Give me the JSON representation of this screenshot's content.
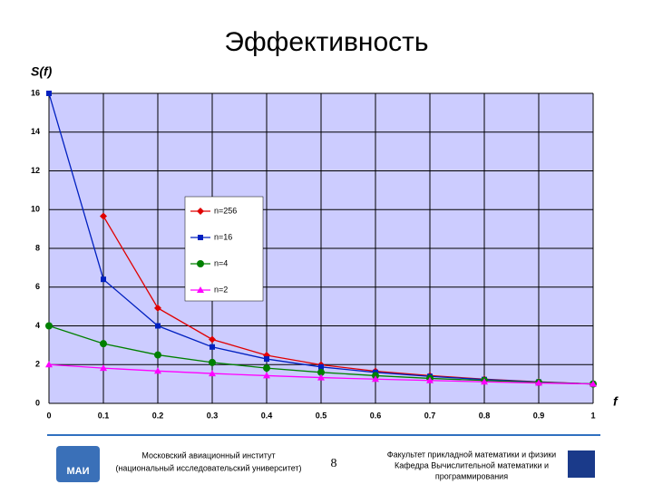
{
  "chart_data": {
    "type": "line",
    "title": "Эффективность",
    "y_label": "S(f)",
    "x_label": "f",
    "x": [
      0,
      0.1,
      0.2,
      0.3,
      0.4,
      0.5,
      0.6,
      0.7,
      0.8,
      0.9,
      1
    ],
    "series": [
      {
        "name": "n=256",
        "color": "#e00000",
        "marker": "diamond",
        "values": [
          null,
          9.66,
          4.92,
          3.3,
          2.48,
          1.99,
          1.66,
          1.43,
          1.25,
          1.11,
          1
        ]
      },
      {
        "name": "n=16",
        "color": "#0020c0",
        "marker": "square",
        "values": [
          16,
          6.4,
          4,
          2.91,
          2.29,
          1.88,
          1.6,
          1.39,
          1.23,
          1.1,
          1
        ]
      },
      {
        "name": "n=4",
        "color": "#008000",
        "marker": "circle",
        "values": [
          4,
          3.08,
          2.5,
          2.11,
          1.82,
          1.6,
          1.43,
          1.29,
          1.18,
          1.08,
          1
        ]
      },
      {
        "name": "n=2",
        "color": "#ff00ff",
        "marker": "triangle",
        "values": [
          2,
          1.82,
          1.67,
          1.54,
          1.43,
          1.33,
          1.25,
          1.18,
          1.11,
          1.05,
          1
        ]
      }
    ],
    "xlim": [
      0,
      1
    ],
    "xticks": [
      0,
      0.1,
      0.2,
      0.3,
      0.4,
      0.5,
      0.6,
      0.7,
      0.8,
      0.9,
      1
    ],
    "ylim": [
      0,
      16
    ],
    "yticks": [
      0,
      2,
      4,
      6,
      8,
      10,
      12,
      14,
      16
    ],
    "grid": true
  },
  "footer": {
    "left_logo": "МАИ",
    "left_line1": "Московский авиационный институт",
    "left_line2": "(национальный исследовательский университет)",
    "page": "8",
    "right_line1": "Факультет прикладной математики и физики",
    "right_line2": "Кафедра Вычислительной математики и",
    "right_line3": "программирования"
  }
}
